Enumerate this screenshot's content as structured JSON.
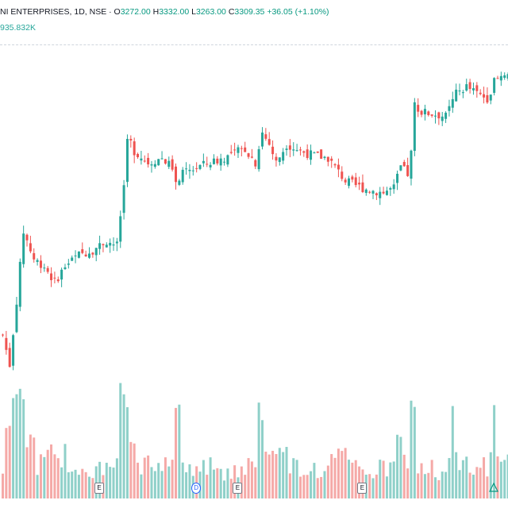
{
  "header": {
    "symbol_line": "NI ENTERPRISES, 1D, NSE",
    "open_label": "O",
    "open": "3272.00",
    "high_label": "H",
    "high": "3332.00",
    "low_label": "L",
    "low": "3263.00",
    "close_label": "C",
    "close": "3309.35",
    "change": "+36.05 (+1.10%)",
    "volume": "935.832K"
  },
  "colors": {
    "up": "#26a69a",
    "down": "#ef5350",
    "up_volume": "#8fd0c9",
    "down_volume": "#f5a9a7"
  },
  "events": [
    {
      "type": "earnings",
      "label": "E",
      "index": 28
    },
    {
      "type": "dividend",
      "label": "D",
      "index": 56
    },
    {
      "type": "earnings",
      "label": "E",
      "index": 68
    },
    {
      "type": "earnings",
      "label": "E",
      "index": 104
    },
    {
      "type": "split",
      "label": "",
      "index": 142
    }
  ],
  "chart_data": {
    "type": "candlestick",
    "title": "",
    "xlabel": "",
    "ylabel": "",
    "ylim": [
      1950,
      3400
    ],
    "anchors": [
      [
        0,
        2150
      ],
      [
        2,
        2020
      ],
      [
        4,
        2300
      ],
      [
        6,
        2600
      ],
      [
        7,
        2560
      ],
      [
        9,
        2480
      ],
      [
        12,
        2450
      ],
      [
        15,
        2380
      ],
      [
        18,
        2450
      ],
      [
        22,
        2500
      ],
      [
        26,
        2520
      ],
      [
        30,
        2560
      ],
      [
        33,
        2540
      ],
      [
        35,
        2800
      ],
      [
        36,
        3020
      ],
      [
        38,
        2950
      ],
      [
        42,
        2900
      ],
      [
        46,
        2920
      ],
      [
        49,
        2880
      ],
      [
        50,
        2800
      ],
      [
        52,
        2850
      ],
      [
        56,
        2880
      ],
      [
        60,
        2900
      ],
      [
        64,
        2920
      ],
      [
        68,
        2950
      ],
      [
        70,
        2960
      ],
      [
        73,
        2900
      ],
      [
        75,
        3030
      ],
      [
        77,
        2980
      ],
      [
        79,
        2900
      ],
      [
        82,
        2980
      ],
      [
        86,
        2950
      ],
      [
        90,
        2930
      ],
      [
        94,
        2920
      ],
      [
        96,
        2880
      ],
      [
        99,
        2820
      ],
      [
        102,
        2800
      ],
      [
        106,
        2780
      ],
      [
        110,
        2770
      ],
      [
        113,
        2790
      ],
      [
        115,
        2880
      ],
      [
        117,
        2850
      ],
      [
        118,
        2940
      ],
      [
        119,
        3150
      ],
      [
        121,
        3120
      ],
      [
        125,
        3110
      ],
      [
        128,
        3100
      ],
      [
        131,
        3200
      ],
      [
        134,
        3230
      ],
      [
        137,
        3200
      ],
      [
        140,
        3180
      ],
      [
        142,
        3250
      ],
      [
        145,
        3290
      ],
      [
        147,
        3309
      ]
    ],
    "note_on_data": "Daily OHLC candles with volume histogram; values estimated from visible price action (no price axis labels shown)."
  }
}
